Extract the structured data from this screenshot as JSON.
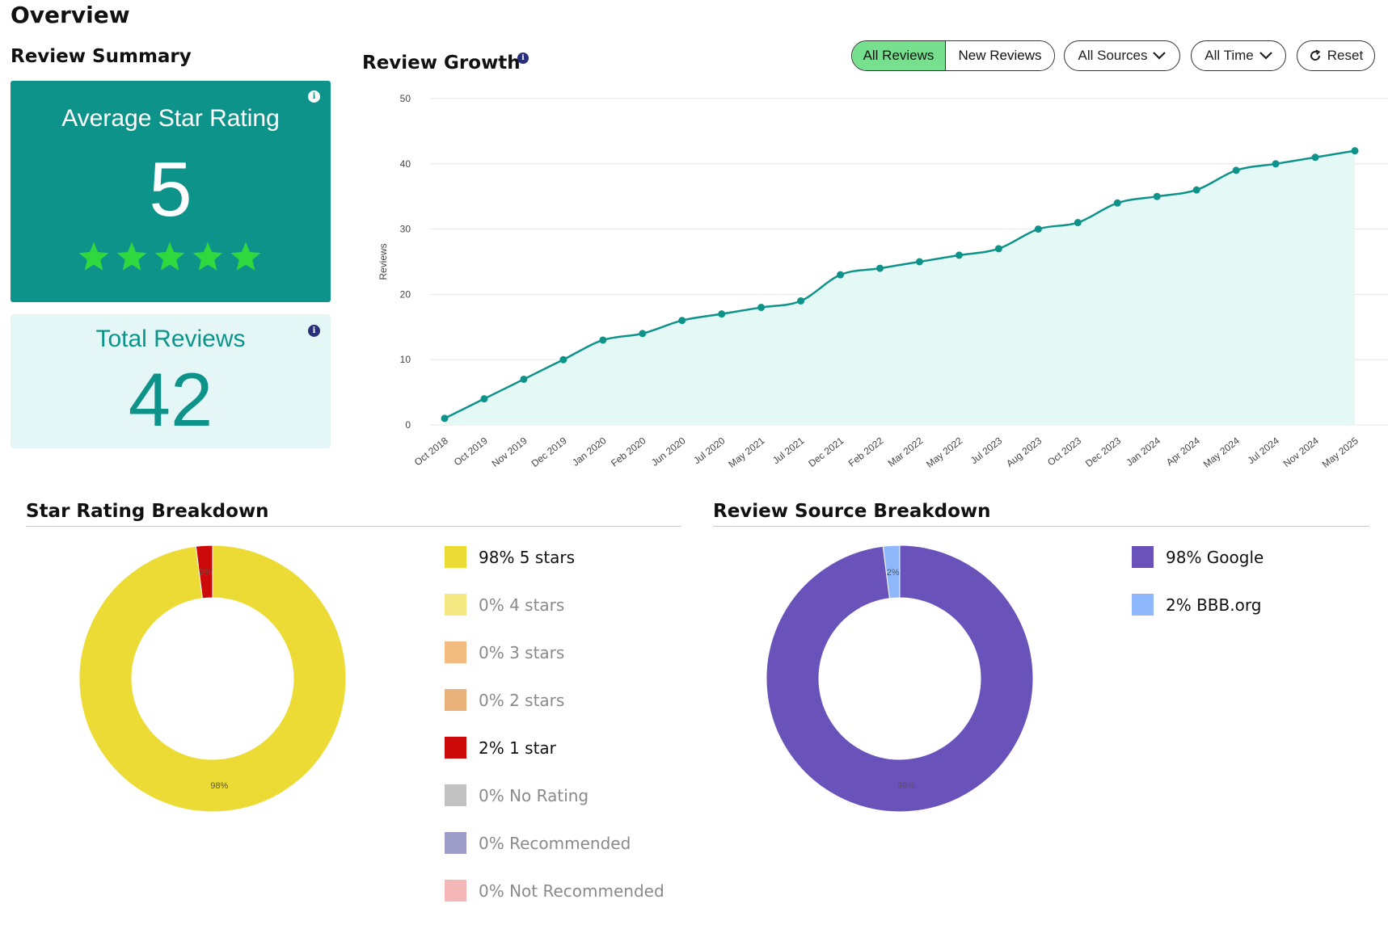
{
  "page": {
    "title": "Overview"
  },
  "review_summary": {
    "title": "Review Summary",
    "average": {
      "label": "Average Star Rating",
      "value": "5",
      "stars": 5,
      "info_icon": "info-icon"
    },
    "total": {
      "label": "Total Reviews",
      "value": "42",
      "info_icon": "info-icon"
    }
  },
  "growth": {
    "title": "Review Growth",
    "toggle": {
      "all": "All Reviews",
      "new": "New Reviews",
      "active": "all"
    },
    "filters": {
      "sources": "All Sources",
      "time": "All Time",
      "reset": "Reset"
    }
  },
  "star_breakdown": {
    "title": "Star Rating Breakdown",
    "legend": [
      {
        "label": "98% 5 stars",
        "color": "#ebdb34",
        "active": true
      },
      {
        "label": "0% 4 stars",
        "color": "#f3e781",
        "active": false
      },
      {
        "label": "0% 3 stars",
        "color": "#f2bb80",
        "active": false
      },
      {
        "label": "0% 2 stars",
        "color": "#e8b27a",
        "active": false
      },
      {
        "label": "2% 1 star",
        "color": "#cc0a0a",
        "active": true
      },
      {
        "label": "0% No Rating",
        "color": "#c2c2c2",
        "active": false
      },
      {
        "label": "0% Recommended",
        "color": "#9d9bc8",
        "active": false
      },
      {
        "label": "0% Not Recommended",
        "color": "#f5b6b8",
        "active": false
      }
    ]
  },
  "source_breakdown": {
    "title": "Review Source Breakdown",
    "legend": [
      {
        "label": "98% Google",
        "color": "#6a52bb",
        "active": true
      },
      {
        "label": "2% BBB.org",
        "color": "#8eb8fb",
        "active": true
      }
    ]
  },
  "chart_data": [
    {
      "type": "area",
      "title": "Review Growth",
      "xlabel": "",
      "ylabel": "Reviews",
      "ylim": [
        0,
        50
      ],
      "yticks": [
        0,
        10,
        20,
        30,
        40,
        50
      ],
      "grid": true,
      "color": "#0e938a",
      "fill": "#e4f8f6",
      "x": [
        "Oct 2018",
        "Oct 2019",
        "Nov 2019",
        "Dec 2019",
        "Jan 2020",
        "Feb 2020",
        "Jun 2020",
        "Jul 2020",
        "May 2021",
        "Jul 2021",
        "Dec 2021",
        "Feb 2022",
        "Mar 2022",
        "May 2022",
        "Jul 2023",
        "Aug 2023",
        "Oct 2023",
        "Dec 2023",
        "Jan 2024",
        "Apr 2024",
        "May 2024",
        "Jul 2024",
        "Nov 2024",
        "May 2025"
      ],
      "series": [
        {
          "values": [
            1,
            4,
            7,
            10,
            13,
            14,
            16,
            17,
            18,
            19,
            23,
            24,
            25,
            26,
            27,
            30,
            31,
            34,
            35,
            36,
            39,
            40,
            41,
            42
          ]
        }
      ]
    },
    {
      "type": "pie",
      "title": "Star Rating Breakdown",
      "categories": [
        "5 stars",
        "1 star"
      ],
      "values": [
        98,
        2
      ],
      "colors": [
        "#ebdb34",
        "#cc0a0a"
      ],
      "data_labels": [
        "98%",
        "2%"
      ]
    },
    {
      "type": "pie",
      "title": "Review Source Breakdown",
      "categories": [
        "Google",
        "BBB.org"
      ],
      "values": [
        98,
        2
      ],
      "colors": [
        "#6a52bb",
        "#8eb8fb"
      ],
      "data_labels": [
        "98%",
        "2%"
      ]
    }
  ]
}
